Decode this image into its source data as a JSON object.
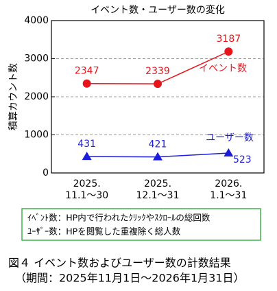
{
  "chart_data": {
    "type": "line",
    "title": "イベント数・ユーザー数の変化",
    "ylabel": "積算カウント数",
    "categories": [
      "2025.\n11.1～30",
      "2025.\n12.1～31",
      "2026.\n1.1～31"
    ],
    "ylim": [
      0,
      4000
    ],
    "yticks": [
      0,
      1000,
      2000,
      3000,
      4000
    ],
    "grid": true,
    "series": [
      {
        "name": "イベント数",
        "color": "#e8141c",
        "marker": "circle",
        "values": [
          2347,
          2339,
          3187
        ]
      },
      {
        "name": "ユーザー数",
        "color": "#1c1cdc",
        "marker": "triangle",
        "values": [
          431,
          421,
          523
        ]
      }
    ]
  },
  "notes": [
    "ｲﾍﾞﾝﾄ数：HP内で行われたｸﾘｯｸやｽｸﾛｰﾙの総回数",
    "ﾕｰｻﾞｰ数：HPを閲覧した重複除く総人数"
  ],
  "caption": [
    "図４ イベント数およびユーザー数の計数結果",
    "（期間：2025年11月1日～2026年1月31日）"
  ]
}
